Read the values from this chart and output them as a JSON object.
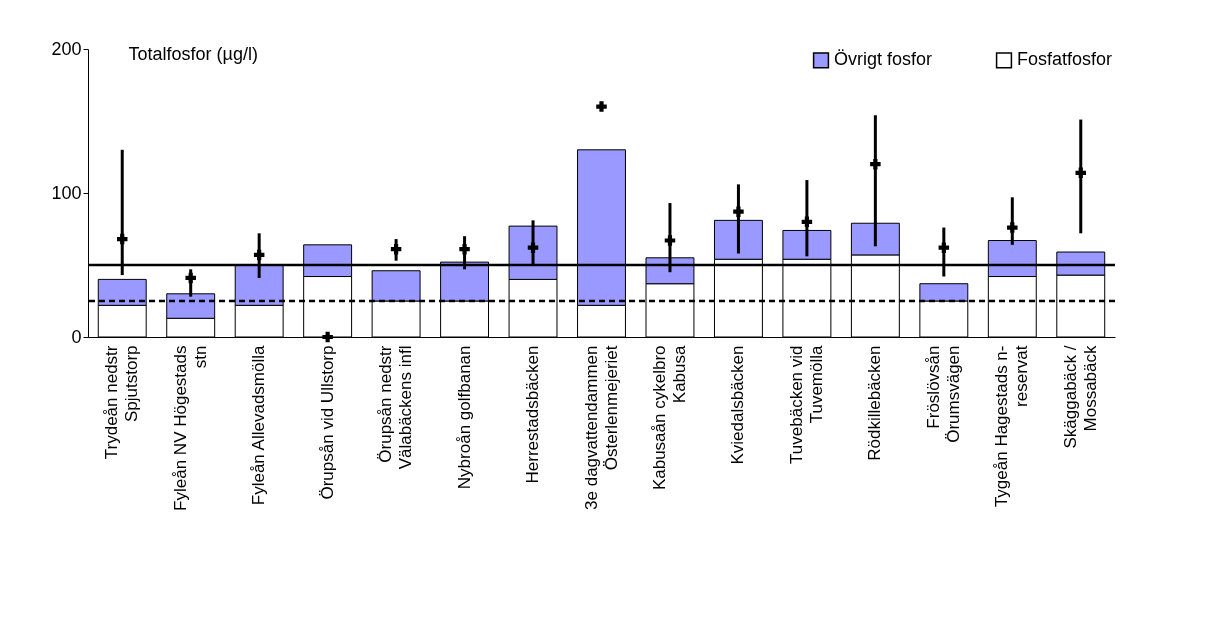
{
  "chart_data": {
    "type": "bar",
    "ylabel": "Totalfosfor (µg/l)",
    "categories": [
      "Trydeån nedstr Spjutstorp",
      "Fyleån NV Högestads stn",
      "Fyleån Allevadsmölla",
      "Örupsån vid Ullstorp",
      "Örupsån nedstr Välabäckens  infl",
      "Nybroån golfbanan",
      "Herrestadsbäcken",
      "3e dagvattendammen Österlenmejeriet",
      "Kabusaån cykelbro Kabusa",
      "Kviedalsbäcken",
      "Tuvebäcken vid Tuvemölla",
      "Rödkillebäcken",
      "Fröslövsån Örumsvägen",
      "Tygeån Hagestads n-reservat",
      "Skäggabäck / Mossabäck"
    ],
    "stacked": true,
    "series": [
      {
        "name": "Fosfatfosfor",
        "color": "#ffffff",
        "values": [
          22,
          13,
          22,
          42,
          25,
          25,
          40,
          22,
          37,
          54,
          54,
          57,
          25,
          42,
          43
        ]
      },
      {
        "name": "Övrigt fosfor",
        "color": "#9999ff",
        "values": [
          18,
          17,
          28,
          22,
          21,
          27,
          37,
          108,
          18,
          27,
          20,
          22,
          12,
          25,
          16
        ]
      },
      {
        "type": "scatter",
        "color": "#000000",
        "marker": "cross",
        "values": [
          68,
          41,
          57,
          0,
          61,
          61,
          62,
          160,
          67,
          87,
          80,
          120,
          62,
          76,
          114
        ],
        "errors": [
          [
            43,
            130
          ],
          [
            28,
            47
          ],
          [
            41,
            72
          ],
          null,
          [
            53,
            68
          ],
          [
            47,
            70
          ],
          [
            50,
            81
          ],
          null,
          [
            45,
            93
          ],
          [
            58,
            106
          ],
          [
            56,
            109
          ],
          [
            63,
            154
          ],
          [
            42,
            76
          ],
          [
            64,
            97
          ],
          [
            72,
            151
          ]
        ]
      }
    ],
    "ylim": [
      0,
      200
    ],
    "yticks": [
      0,
      100,
      200
    ],
    "grid": false,
    "legend": "top right",
    "ref_lines": [
      {
        "axis": "y",
        "value": 50,
        "line_style": "solid",
        "color": "#000000"
      },
      {
        "axis": "y",
        "value": 25,
        "line_style": "dashed",
        "color": "#000000"
      }
    ]
  }
}
